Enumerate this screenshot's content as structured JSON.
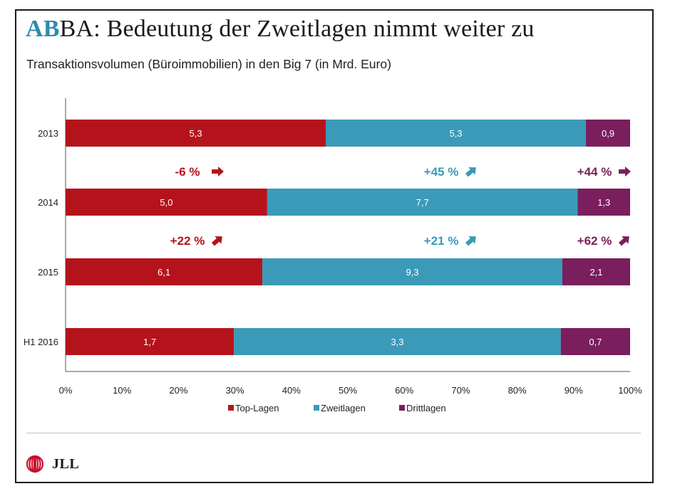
{
  "title": {
    "prefix": "AB",
    "rest": "BA: Bedeutung der Zweitlagen nimmt weiter zu"
  },
  "subtitle": "Transaktionsvolumen (Büroimmobilien) in den Big 7 (in Mrd. Euro)",
  "colors": {
    "top": "#b5131c",
    "zweit": "#3a9ab8",
    "dritt": "#7a1e5d",
    "title_accent": "#2a8dab"
  },
  "chart_data": {
    "type": "bar",
    "stacked": "percent",
    "orientation": "horizontal",
    "categories": [
      "2013",
      "2014",
      "2015",
      "H1 2016"
    ],
    "series": [
      {
        "name": "Top-Lagen",
        "values": [
          5.3,
          5.0,
          6.1,
          1.7
        ],
        "labels": [
          "5,3",
          "5,0",
          "6,1",
          "1,7"
        ],
        "color": "#b5131c"
      },
      {
        "name": "Zweitlagen",
        "values": [
          5.3,
          7.7,
          9.3,
          3.3
        ],
        "labels": [
          "5,3",
          "7,7",
          "9,3",
          "3,3"
        ],
        "color": "#3a9ab8"
      },
      {
        "name": "Drittlagen",
        "values": [
          0.9,
          1.3,
          2.1,
          0.7
        ],
        "labels": [
          "0,9",
          "1,3",
          "2,1",
          "0,7"
        ],
        "color": "#7a1e5d"
      }
    ],
    "xlim": [
      0,
      100
    ],
    "xticks": [
      "0%",
      "10%",
      "20%",
      "30%",
      "40%",
      "50%",
      "60%",
      "70%",
      "80%",
      "90%",
      "100%"
    ],
    "legend_position": "bottom",
    "grid": false,
    "changes": [
      {
        "after": "2013",
        "items": [
          {
            "series": "Top-Lagen",
            "text": "-6 %",
            "direction": "right"
          },
          {
            "series": "Zweitlagen",
            "text": "+45 %",
            "direction": "up"
          },
          {
            "series": "Drittlagen",
            "text": "+44 %",
            "direction": "right"
          }
        ]
      },
      {
        "after": "2014",
        "items": [
          {
            "series": "Top-Lagen",
            "text": "+22 %",
            "direction": "up"
          },
          {
            "series": "Zweitlagen",
            "text": "+21 %",
            "direction": "up"
          },
          {
            "series": "Drittlagen",
            "text": "+62 %",
            "direction": "up"
          }
        ]
      }
    ]
  },
  "footer": {
    "logo_text": "JLL"
  }
}
